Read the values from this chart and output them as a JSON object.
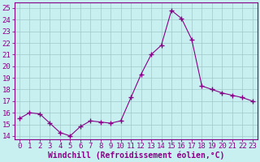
{
  "x": [
    0,
    1,
    2,
    3,
    4,
    5,
    6,
    7,
    8,
    9,
    10,
    11,
    12,
    13,
    14,
    15,
    16,
    17,
    18,
    19,
    20,
    21,
    22,
    23
  ],
  "y": [
    15.5,
    16.0,
    15.9,
    15.1,
    14.3,
    14.0,
    14.8,
    15.3,
    15.2,
    15.1,
    15.3,
    17.3,
    19.3,
    21.0,
    21.8,
    24.8,
    24.1,
    22.3,
    18.3,
    18.0,
    17.7,
    17.5,
    17.3,
    17.0
  ],
  "line_color": "#880088",
  "marker": "+",
  "marker_size": 4,
  "bg_color": "#c8f0f0",
  "grid_color": "#a0c8c8",
  "xlabel": "Windchill (Refroidissement éolien,°C)",
  "ylabel_ticks": [
    14,
    15,
    16,
    17,
    18,
    19,
    20,
    21,
    22,
    23,
    24,
    25
  ],
  "ylim": [
    13.7,
    25.5
  ],
  "xlim": [
    -0.5,
    23.5
  ],
  "xtick_labels": [
    "0",
    "1",
    "2",
    "3",
    "4",
    "5",
    "6",
    "7",
    "8",
    "9",
    "10",
    "11",
    "12",
    "13",
    "14",
    "15",
    "16",
    "17",
    "18",
    "19",
    "20",
    "21",
    "22",
    "23"
  ],
  "axes_color": "#880088",
  "tick_fontsize": 6.5,
  "xlabel_fontsize": 7,
  "figsize": [
    3.2,
    2.0
  ],
  "dpi": 100
}
